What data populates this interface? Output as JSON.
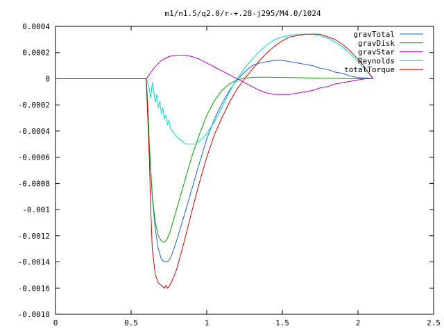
{
  "chart_data": {
    "type": "line",
    "title": "m1/n1.5/q2.0/r-+.28-j295/M4.0/1024",
    "xlabel": "",
    "ylabel": "",
    "xlim": [
      0,
      2.5
    ],
    "ylim": [
      -0.0018,
      0.0004
    ],
    "x_ticks": [
      0,
      0.5,
      1,
      1.5,
      2,
      2.5
    ],
    "x_tick_labels": [
      "0",
      "0.5",
      "1",
      "1.5",
      "2",
      "2.5"
    ],
    "y_ticks": [
      0.0004,
      0.0002,
      0,
      -0.0002,
      -0.0004,
      -0.0006,
      -0.0008,
      -0.001,
      -0.0012,
      -0.0014,
      -0.0016,
      -0.0018
    ],
    "y_tick_labels": [
      "0.0004",
      "0.0002",
      "0",
      "-0.0002",
      "-0.0004",
      "-0.0006",
      "-0.0008",
      "-0.001",
      "-0.0012",
      "-0.0014",
      "-0.0016",
      "-0.0018"
    ],
    "grid": false,
    "legend_position": "top-right",
    "series": [
      {
        "name": "gravTotal",
        "color": "#1f5fd0",
        "x": [
          0,
          0.6,
          0.61,
          0.62,
          0.64,
          0.66,
          0.68,
          0.7,
          0.72,
          0.74,
          0.76,
          0.78,
          0.8,
          0.85,
          0.9,
          0.95,
          1.0,
          1.05,
          1.1,
          1.15,
          1.2,
          1.25,
          1.3,
          1.35,
          1.4,
          1.45,
          1.5,
          1.55,
          1.6,
          1.65,
          1.7,
          1.75,
          1.8,
          1.85,
          1.9,
          1.95,
          2.0,
          2.05,
          2.1
        ],
        "y": [
          0,
          0,
          -0.0002,
          -0.0005,
          -0.0009,
          -0.00115,
          -0.0013,
          -0.00138,
          -0.0014,
          -0.0014,
          -0.00137,
          -0.00131,
          -0.00124,
          -0.00105,
          -0.00085,
          -0.00065,
          -0.00046,
          -0.00031,
          -0.00019,
          -9e-05,
          -1e-05,
          5e-05,
          0.0001,
          0.00012,
          0.00013,
          0.00014,
          0.00014,
          0.00013,
          0.00012,
          0.00011,
          0.0001,
          8e-05,
          7e-05,
          5e-05,
          4e-05,
          2e-05,
          1e-05,
          5e-06,
          0
        ]
      },
      {
        "name": "gravDisk",
        "color": "#00a000",
        "x": [
          0,
          0.6,
          0.61,
          0.62,
          0.64,
          0.66,
          0.68,
          0.7,
          0.72,
          0.74,
          0.76,
          0.78,
          0.8,
          0.85,
          0.9,
          0.95,
          1.0,
          1.05,
          1.1,
          1.15,
          1.2,
          1.25,
          1.3,
          1.35,
          1.4,
          1.5,
          1.6,
          1.7,
          1.8,
          1.9,
          2.0,
          2.1
        ],
        "y": [
          0,
          0,
          -0.0002,
          -0.0005,
          -0.0009,
          -0.0011,
          -0.0012,
          -0.00124,
          -0.00125,
          -0.00122,
          -0.00116,
          -0.00108,
          -0.001,
          -0.0008,
          -0.0006,
          -0.00043,
          -0.00028,
          -0.00017,
          -9e-05,
          -4e-05,
          -1e-05,
          5e-06,
          1e-05,
          1.2e-05,
          1.2e-05,
          1e-05,
          8e-06,
          5e-06,
          3e-06,
          1e-06,
          0,
          0
        ]
      },
      {
        "name": "gravStar",
        "color": "#b000c8",
        "x": [
          0,
          0.6,
          0.65,
          0.7,
          0.75,
          0.8,
          0.85,
          0.9,
          0.95,
          1.0,
          1.05,
          1.1,
          1.15,
          1.2,
          1.25,
          1.3,
          1.35,
          1.4,
          1.45,
          1.5,
          1.55,
          1.6,
          1.65,
          1.7,
          1.75,
          1.8,
          1.85,
          1.9,
          1.95,
          2.0,
          2.05,
          2.1
        ],
        "y": [
          0,
          0,
          8e-05,
          0.00014,
          0.00017,
          0.00018,
          0.00018,
          0.00017,
          0.00015,
          0.00012,
          9e-05,
          6e-05,
          3e-05,
          0,
          -3e-05,
          -6e-05,
          -9e-05,
          -0.00011,
          -0.00012,
          -0.00012,
          -0.00012,
          -0.00011,
          -0.0001,
          -9e-05,
          -7e-05,
          -6e-05,
          -4e-05,
          -3e-05,
          -2e-05,
          -1e-05,
          0,
          0
        ]
      },
      {
        "name": "Reynolds",
        "color": "#00d8d8",
        "x": [
          0,
          0.6,
          0.61,
          0.62,
          0.63,
          0.64,
          0.65,
          0.66,
          0.67,
          0.68,
          0.69,
          0.7,
          0.71,
          0.72,
          0.73,
          0.74,
          0.75,
          0.76,
          0.78,
          0.8,
          0.82,
          0.84,
          0.86,
          0.88,
          0.9,
          0.92,
          0.95,
          1.0,
          1.05,
          1.1,
          1.15,
          1.2,
          1.25,
          1.3,
          1.35,
          1.4,
          1.45,
          1.5,
          1.55,
          1.6,
          1.65,
          1.7,
          1.75,
          1.8,
          1.85,
          1.9,
          1.95,
          2.0,
          2.05,
          2.1
        ],
        "y": [
          0,
          0,
          -3e-05,
          -8e-05,
          -0.00015,
          -3e-05,
          -0.0001,
          -0.00018,
          -0.00012,
          -0.00022,
          -0.00017,
          -0.00027,
          -0.00022,
          -0.00031,
          -0.00028,
          -0.00035,
          -0.00032,
          -0.00038,
          -0.00041,
          -0.00044,
          -0.00046,
          -0.00048,
          -0.0005,
          -0.0005,
          -0.0005,
          -0.0005,
          -0.00048,
          -0.00042,
          -0.00033,
          -0.00022,
          -0.0001,
          0,
          8e-05,
          0.00015,
          0.00021,
          0.00026,
          0.0003,
          0.00032,
          0.00033,
          0.00034,
          0.00034,
          0.00034,
          0.00033,
          0.00031,
          0.00028,
          0.00024,
          0.00019,
          0.00013,
          7e-05,
          0
        ]
      },
      {
        "name": "totalTorque",
        "color": "#d00000",
        "x": [
          0,
          0.6,
          0.61,
          0.62,
          0.63,
          0.64,
          0.66,
          0.68,
          0.7,
          0.72,
          0.73,
          0.74,
          0.75,
          0.76,
          0.78,
          0.8,
          0.85,
          0.9,
          0.95,
          1.0,
          1.05,
          1.1,
          1.15,
          1.2,
          1.25,
          1.3,
          1.35,
          1.4,
          1.45,
          1.5,
          1.55,
          1.6,
          1.65,
          1.7,
          1.75,
          1.8,
          1.85,
          1.9,
          1.95,
          2.0,
          2.05,
          2.1
        ],
        "y": [
          0,
          0,
          -0.0003,
          -0.0006,
          -0.001,
          -0.0013,
          -0.0015,
          -0.00156,
          -0.00158,
          -0.0016,
          -0.00158,
          -0.0016,
          -0.00159,
          -0.00157,
          -0.00152,
          -0.00146,
          -0.00125,
          -0.00102,
          -0.0008,
          -0.0006,
          -0.00043,
          -0.0003,
          -0.00018,
          -8e-05,
          0,
          7e-05,
          0.00014,
          0.0002,
          0.00025,
          0.00029,
          0.00032,
          0.00033,
          0.00034,
          0.00034,
          0.00034,
          0.00032,
          0.0003,
          0.00026,
          0.00021,
          0.00015,
          8e-05,
          0
        ]
      }
    ]
  }
}
